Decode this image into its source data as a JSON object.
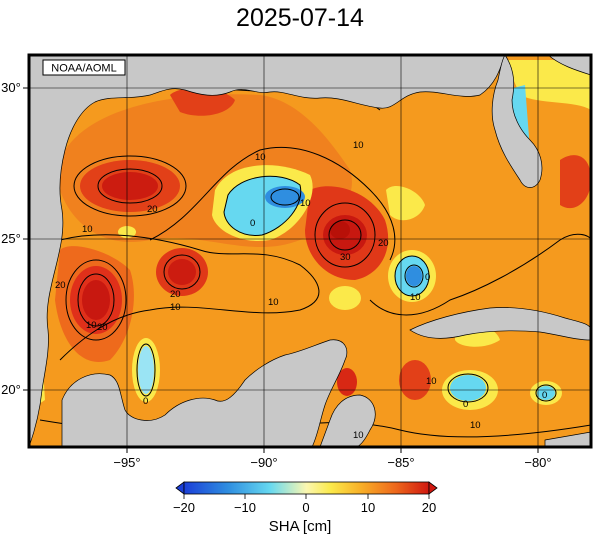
{
  "title": "2025-07-14",
  "credit": "NOAA/AOML",
  "map": {
    "lon_ticks": [
      {
        "value": -95,
        "label": "−95°"
      },
      {
        "value": -90,
        "label": "−90°"
      },
      {
        "value": -85,
        "label": "−85°"
      },
      {
        "value": -80,
        "label": "−80°"
      }
    ],
    "lat_ticks": [
      {
        "value": 30,
        "label": "30°"
      },
      {
        "value": 25,
        "label": "25°"
      },
      {
        "value": 20,
        "label": "20°"
      }
    ],
    "contour_labels": [
      "20",
      "10",
      "10",
      "20",
      "10",
      "0",
      "10",
      "30",
      "20",
      "10",
      "10",
      "20",
      "20",
      "10",
      "0",
      "10",
      "0",
      "10",
      "10",
      "10",
      "0",
      "0"
    ],
    "colors": {
      "land": "#c8c8c8",
      "ocean_base": "#f59a1e",
      "warm": "#e83a1a",
      "hot": "#d01810",
      "cool": "#66d8f0",
      "cold": "#2f8ee0",
      "yellow": "#fbe94a"
    }
  },
  "colorbar": {
    "label": "SHA [cm]",
    "ticks": [
      {
        "value": -20,
        "label": "−20"
      },
      {
        "value": -10,
        "label": "−10"
      },
      {
        "value": 0,
        "label": "0"
      },
      {
        "value": 10,
        "label": "10"
      },
      {
        "value": 20,
        "label": "20"
      }
    ]
  }
}
